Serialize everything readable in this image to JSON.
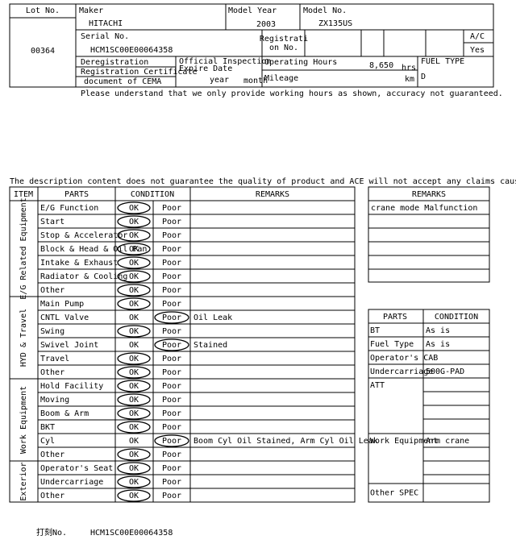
{
  "header": {
    "lot_label": "Lot No.",
    "lot_no": "00364",
    "maker_label": "Maker",
    "maker": "HITACHI",
    "model_year_label": "Model Year",
    "model_year": "2003",
    "model_no_label": "Model No.",
    "model_no": "ZX135US",
    "serial_label": "Serial No.",
    "serial": "HCM1SC00E00064358",
    "registration_label": [
      "Registrati",
      "on No."
    ],
    "ac_label": "A/C",
    "ac": "Yes",
    "dereg_lines": [
      "Deregistration",
      "Registration Certificate",
      "document of CEMA"
    ],
    "inspection_label": [
      "Official Inspection",
      "Expire Date"
    ],
    "year_label": "year",
    "month_label": "month",
    "hours_label": "Operating Hours",
    "hours": "8,650",
    "hours_unit": "hrs",
    "mileage_label": "Mileage",
    "mileage_unit": "km",
    "fuel_label": "FUEL TYPE",
    "fuel": "D"
  },
  "notice": "Please understand that we only provide working hours as shown, accuracy not guaranteed.",
  "disclaimer": "The description content does not guarantee the quality of product and ACE will not accept any claims caused by the descriptions.",
  "main_table": {
    "headers": [
      "ITEM",
      "PARTS",
      "CONDITION",
      "REMARKS"
    ],
    "ok_label": "OK",
    "poor_label": "Poor",
    "groups": [
      {
        "name": "E/G Related Equipment",
        "rows": [
          {
            "part": "E/G Function",
            "circled": "ok"
          },
          {
            "part": "Start",
            "circled": "ok"
          },
          {
            "part": "Stop & Accelerator",
            "circled": "ok"
          },
          {
            "part": "Block & Head & Oil Pan",
            "circled": "ok"
          },
          {
            "part": "Intake & Exhaust",
            "circled": "ok"
          },
          {
            "part": "Radiator & Cooling",
            "circled": "ok"
          },
          {
            "part": "Other",
            "circled": "ok"
          }
        ]
      },
      {
        "name": "HYD & Travel",
        "rows": [
          {
            "part": "Main Pump",
            "circled": "ok"
          },
          {
            "part": "CNTL Valve",
            "circled": "poor",
            "remarks": "Oil Leak"
          },
          {
            "part": "Swing",
            "circled": "ok"
          },
          {
            "part": "Swivel Joint",
            "circled": "poor",
            "remarks": "Stained"
          },
          {
            "part": "Travel",
            "circled": "ok"
          },
          {
            "part": "Other",
            "circled": "ok"
          }
        ]
      },
      {
        "name": "Work Equipment",
        "rows": [
          {
            "part": "Hold Facility",
            "circled": "ok"
          },
          {
            "part": "Moving",
            "circled": "ok"
          },
          {
            "part": "Boom & Arm",
            "circled": "ok"
          },
          {
            "part": "BKT",
            "circled": "ok"
          },
          {
            "part": "Cyl",
            "circled": "poor",
            "remarks": "Boom Cyl Oil Stained, Arm Cyl Oil Leak"
          },
          {
            "part": "Other",
            "circled": "ok"
          }
        ]
      },
      {
        "name": "Exterior",
        "rows": [
          {
            "part": "Operator's Seat",
            "circled": "ok"
          },
          {
            "part": "Undercarriage",
            "circled": "ok"
          },
          {
            "part": "Other",
            "circled": "ok"
          }
        ]
      }
    ]
  },
  "remarks_table": {
    "header": "REMARKS",
    "rows": [
      "crane mode Malfunction"
    ]
  },
  "parts_table": {
    "headers": [
      "PARTS",
      "CONDITION"
    ],
    "rows": [
      {
        "part": "BT",
        "condition": "As is"
      },
      {
        "part": "Fuel Type",
        "condition": "As is"
      },
      {
        "part": "Operator's CAB"
      },
      {
        "part": "Undercarriage",
        "condition": "500G-PAD"
      },
      {
        "part": "ATT"
      },
      {
        "part": "Work Equipment",
        "condition": "Arm crane"
      },
      {
        "part": "Other SPEC"
      }
    ]
  },
  "footer": {
    "label": "打刻No.",
    "serial": "HCM1SC00E00064358"
  }
}
